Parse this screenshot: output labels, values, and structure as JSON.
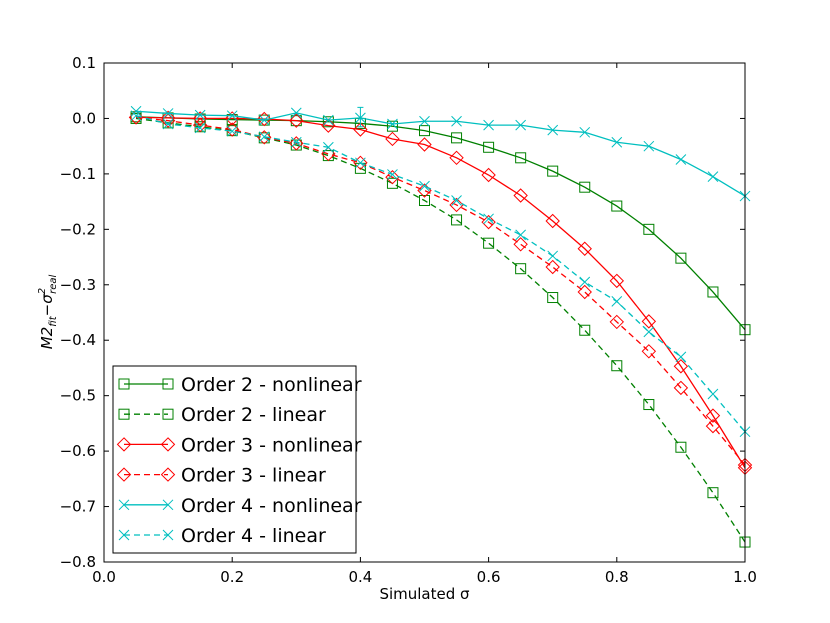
{
  "chart_data": {
    "type": "line",
    "title": "",
    "xlabel": "Simulated σ",
    "ylabel": "M2fit−σ²real",
    "ylabel_parts": {
      "base": "M2",
      "sub": "fit",
      "mid": "−σ",
      "sup": "2",
      "sub2": "real"
    },
    "xlim": [
      0.0,
      1.0
    ],
    "ylim": [
      -0.8,
      0.1
    ],
    "x_ticks": [
      "0.0",
      "0.2",
      "0.4",
      "0.6",
      "0.8",
      "1.0"
    ],
    "y_ticks": [
      "0.1",
      "0.0",
      "−0.1",
      "−0.2",
      "−0.3",
      "−0.4",
      "−0.5",
      "−0.6",
      "−0.7",
      "−0.8"
    ],
    "grid": false,
    "legend_position": "lower-left",
    "x": [
      0.05,
      0.1,
      0.15,
      0.2,
      0.25,
      0.3,
      0.35,
      0.4,
      0.45,
      0.5,
      0.55,
      0.6,
      0.65,
      0.7,
      0.75,
      0.8,
      0.85,
      0.9,
      0.95,
      1.0
    ],
    "series": [
      {
        "name": "Order 2 - nonlinear",
        "color": "#008000",
        "dash": "solid",
        "marker": "square",
        "values": [
          0.003,
          0.001,
          -0.001,
          -0.002,
          -0.003,
          -0.004,
          -0.006,
          -0.009,
          -0.014,
          -0.022,
          -0.035,
          -0.052,
          -0.071,
          -0.095,
          -0.124,
          -0.158,
          -0.2,
          -0.252,
          -0.313,
          -0.381
        ]
      },
      {
        "name": "Order 2 - linear",
        "color": "#008000",
        "dash": "dashed",
        "marker": "square",
        "values": [
          0.0,
          -0.008,
          -0.015,
          -0.022,
          -0.035,
          -0.048,
          -0.067,
          -0.09,
          -0.117,
          -0.148,
          -0.183,
          -0.225,
          -0.271,
          -0.323,
          -0.382,
          -0.446,
          -0.516,
          -0.593,
          -0.675,
          -0.764
        ]
      },
      {
        "name": "Order 3 - nonlinear",
        "color": "#ff0000",
        "dash": "solid",
        "marker": "diamond",
        "values": [
          0.002,
          0.001,
          0.0,
          0.0,
          -0.001,
          -0.004,
          -0.013,
          -0.02,
          -0.037,
          -0.047,
          -0.071,
          -0.102,
          -0.139,
          -0.185,
          -0.235,
          -0.293,
          -0.366,
          -0.447,
          -0.536,
          -0.63
        ]
      },
      {
        "name": "Order 3 - linear",
        "color": "#ff0000",
        "dash": "dashed",
        "marker": "diamond",
        "values": [
          0.002,
          -0.004,
          -0.012,
          -0.02,
          -0.034,
          -0.045,
          -0.064,
          -0.08,
          -0.106,
          -0.13,
          -0.156,
          -0.187,
          -0.227,
          -0.268,
          -0.313,
          -0.367,
          -0.42,
          -0.486,
          -0.555,
          -0.625
        ]
      },
      {
        "name": "Order 4 - nonlinear",
        "color": "#00bfbf",
        "dash": "solid",
        "marker": "x",
        "values": [
          0.013,
          0.009,
          0.006,
          0.005,
          -0.003,
          0.01,
          -0.003,
          0.001,
          -0.01,
          -0.005,
          -0.005,
          -0.012,
          -0.012,
          -0.021,
          -0.025,
          -0.043,
          -0.05,
          -0.074,
          -0.105,
          -0.14
        ]
      },
      {
        "name": "Order 4 - linear",
        "color": "#00bfbf",
        "dash": "dashed",
        "marker": "x",
        "values": [
          0.005,
          -0.01,
          -0.017,
          -0.023,
          -0.033,
          -0.043,
          -0.052,
          -0.08,
          -0.101,
          -0.122,
          -0.148,
          -0.181,
          -0.21,
          -0.248,
          -0.295,
          -0.33,
          -0.385,
          -0.43,
          -0.497,
          -0.565
        ]
      }
    ]
  }
}
